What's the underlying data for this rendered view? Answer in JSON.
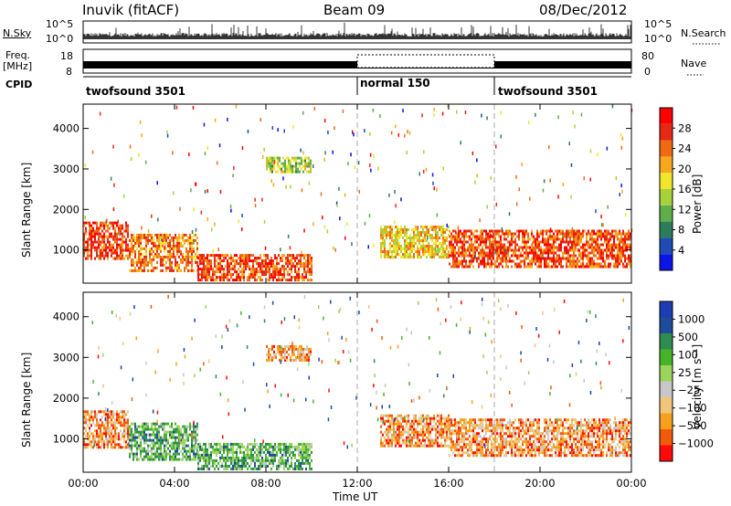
{
  "header": {
    "station": "Inuvik (fitACF)",
    "beam": "Beam 09",
    "date": "08/Dec/2012"
  },
  "strip": {
    "nsky_label": "N.Sky",
    "freq_label_1": "Freq.",
    "freq_label_2": "[MHz]",
    "cpid_label": "CPID",
    "nsearch_label": "N.Search",
    "nave_label": "Nave",
    "nsky_ticks": [
      "10^5",
      "10^0"
    ],
    "nsearch_ticks": [
      "10^5",
      "10^0"
    ],
    "freq_ticks": [
      "18",
      "8"
    ],
    "nave_ticks": [
      "80",
      "0"
    ]
  },
  "cpid_modes": [
    {
      "name": "twofsound 3501",
      "start": 0,
      "end": 12
    },
    {
      "name": "normal 150",
      "start": 12,
      "end": 18
    },
    {
      "name": "twofsound 3501",
      "start": 18,
      "end": 24
    }
  ],
  "colors": {
    "power": [
      "#0a14e6",
      "#1e4cb4",
      "#2e7d5a",
      "#5fae4a",
      "#a6d23c",
      "#f2e52b",
      "#f6a81c",
      "#f06a14",
      "#e62814",
      "#ff0000"
    ],
    "velocity": [
      "#ff0a0a",
      "#f25a0a",
      "#f6a01e",
      "#f2c67a",
      "#c8c8c8",
      "#9ad45a",
      "#46b428",
      "#2e8c50",
      "#1e4c9c",
      "#1e3cb4"
    ]
  },
  "chart_data": [
    {
      "type": "heatmap",
      "title": "Power",
      "xlabel": "",
      "ylabel": "Slant Range [km]",
      "x_ticks": [
        "00:00",
        "04:00",
        "08:00",
        "12:00",
        "16:00",
        "20:00",
        "00:00"
      ],
      "y_ticks": [
        1000,
        2000,
        3000,
        4000
      ],
      "xlim": [
        0,
        24
      ],
      "ylim": [
        180,
        4600
      ],
      "colorbar": {
        "label": "Power [dB]",
        "ticks": [
          4,
          8,
          12,
          16,
          20,
          24,
          28
        ],
        "range": [
          0,
          30
        ]
      },
      "regions": [
        {
          "x": [
            0,
            2
          ],
          "y": [
            800,
            1700
          ],
          "value": 26
        },
        {
          "x": [
            2,
            5
          ],
          "y": [
            500,
            1400
          ],
          "value": 22
        },
        {
          "x": [
            5,
            10
          ],
          "y": [
            250,
            900
          ],
          "value": 25
        },
        {
          "x": [
            8,
            10
          ],
          "y": [
            2900,
            3300
          ],
          "value": 14
        },
        {
          "x": [
            13,
            16
          ],
          "y": [
            800,
            1600
          ],
          "value": 18
        },
        {
          "x": [
            16,
            24
          ],
          "y": [
            600,
            1500
          ],
          "value": 25
        }
      ]
    },
    {
      "type": "heatmap",
      "title": "Velocity",
      "xlabel": "Time UT",
      "ylabel": "Slant Range [km]",
      "x_ticks": [
        "00:00",
        "04:00",
        "08:00",
        "12:00",
        "16:00",
        "20:00",
        "00:00"
      ],
      "y_ticks": [
        1000,
        2000,
        3000,
        4000
      ],
      "xlim": [
        0,
        24
      ],
      "ylim": [
        180,
        4600
      ],
      "colorbar": {
        "label": "Velocity [m s⁻¹]",
        "ticks": [
          "1000",
          "500",
          "100",
          "25",
          "−25",
          "−100",
          "−500",
          "−1000"
        ]
      },
      "regions": [
        {
          "x": [
            0,
            2
          ],
          "y": [
            800,
            1700
          ],
          "value": -300
        },
        {
          "x": [
            2,
            5
          ],
          "y": [
            500,
            1400
          ],
          "value": 50
        },
        {
          "x": [
            5,
            10
          ],
          "y": [
            250,
            900
          ],
          "value": 80
        },
        {
          "x": [
            8,
            10
          ],
          "y": [
            2900,
            3300
          ],
          "value": -150
        },
        {
          "x": [
            13,
            16
          ],
          "y": [
            800,
            1600
          ],
          "value": -200
        },
        {
          "x": [
            16,
            24
          ],
          "y": [
            600,
            1500
          ],
          "value": -400
        }
      ]
    }
  ]
}
